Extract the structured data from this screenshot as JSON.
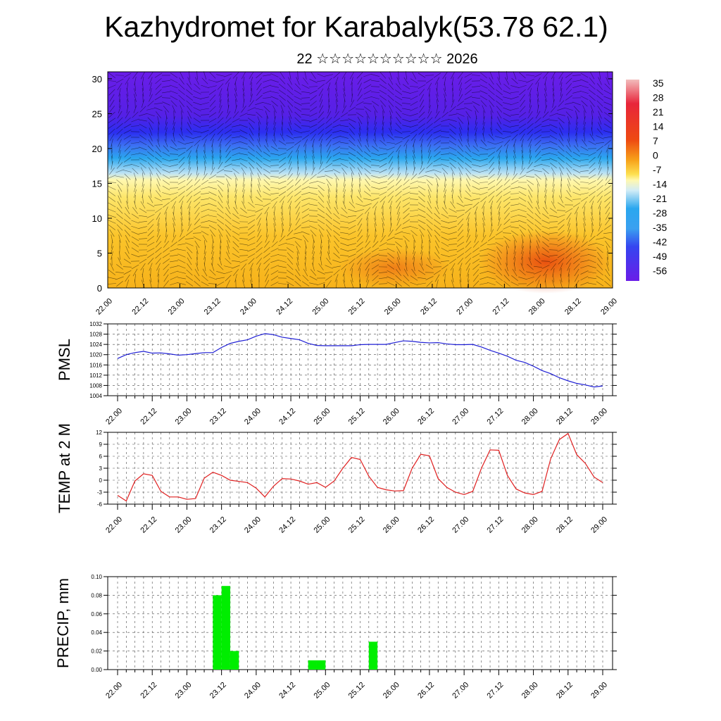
{
  "header": {
    "title": "Kazhydromet for Karabalyk(53.78 62.1)",
    "subtitle": "22 ☆☆☆☆☆☆☆☆☆☆ 2026"
  },
  "chart_data": [
    {
      "type": "heatmap",
      "name": "vertical cross-section",
      "x_tick_labels": [
        "22.00",
        "22.12",
        "23.00",
        "23.12",
        "24.00",
        "24.12",
        "25.00",
        "25.12",
        "26.00",
        "26.12",
        "27.00",
        "27.12",
        "28.00",
        "28.12",
        "29.00"
      ],
      "y_tick_labels": [
        "0",
        "5",
        "10",
        "15",
        "20",
        "25",
        "30"
      ],
      "ylim": [
        0,
        31
      ],
      "colorbar_labels": [
        "35",
        "28",
        "21",
        "14",
        "7",
        "0",
        "-7",
        "-14",
        "-21",
        "-28",
        "-35",
        "-42",
        "-49",
        "-56"
      ],
      "colorbar_range": [
        -63,
        42
      ],
      "overlay": "wind barbs",
      "colors": {
        "cold": "#6a1de8",
        "cool": "#2aa7ef",
        "neutral": "#fff8b0",
        "warm": "#f7b21a",
        "hot": "#e8460e"
      }
    },
    {
      "type": "line",
      "ylabel": "PMSL",
      "x_tick_labels": [
        "22.00",
        "22.12",
        "23.00",
        "23.12",
        "24.00",
        "24.12",
        "25.00",
        "25.12",
        "26.00",
        "26.12",
        "27.00",
        "27.12",
        "28.00",
        "28.12",
        "29.00"
      ],
      "y_tick_labels": [
        "1004",
        "1008",
        "1012",
        "1016",
        "1020",
        "1024",
        "1028",
        "1032"
      ],
      "ylim": [
        1004,
        1032
      ],
      "xlim": [
        0,
        56
      ],
      "color": "#1f1fd6",
      "series": [
        {
          "x": [
            0,
            1,
            2,
            3,
            4,
            5,
            6,
            7,
            8,
            9,
            10,
            11,
            12,
            13,
            14,
            15,
            16,
            17,
            18,
            19,
            20,
            21,
            22,
            23,
            24,
            25,
            26,
            27,
            28,
            29,
            30,
            31,
            32,
            33,
            34,
            35,
            36,
            37,
            38,
            39,
            40,
            41,
            42,
            43,
            44,
            45,
            46,
            47,
            48,
            49,
            50,
            51,
            52,
            53,
            54,
            55,
            56
          ],
          "values": [
            1018.5,
            1020,
            1020.8,
            1021.3,
            1020.6,
            1020.7,
            1020.3,
            1019.8,
            1020,
            1020.4,
            1020.8,
            1020.8,
            1022.8,
            1024.4,
            1025.2,
            1025.8,
            1027.2,
            1028.2,
            1027.8,
            1026.8,
            1026.3,
            1025.8,
            1024.4,
            1023.6,
            1023.5,
            1023.5,
            1023.5,
            1023.5,
            1023.9,
            1024,
            1024,
            1024,
            1024.7,
            1025.4,
            1025.2,
            1024.8,
            1024.6,
            1024.7,
            1024.2,
            1023.9,
            1023.9,
            1024,
            1023,
            1021.7,
            1020.6,
            1019.4,
            1017.8,
            1017,
            1015.5,
            1013.8,
            1012.6,
            1011,
            1009.8,
            1008.8,
            1008.2,
            1007.4,
            1007.8
          ]
        }
      ]
    },
    {
      "type": "line",
      "ylabel": "TEMP at 2 M",
      "x_tick_labels": [
        "22.00",
        "22.12",
        "23.00",
        "23.12",
        "24.00",
        "24.12",
        "25.00",
        "25.12",
        "26.00",
        "26.12",
        "27.00",
        "27.12",
        "28.00",
        "28.12",
        "29.00"
      ],
      "y_tick_labels": [
        "12",
        "9",
        "6",
        "3",
        "0",
        "-3",
        "-6"
      ],
      "ylim": [
        -6,
        12
      ],
      "xlim": [
        0,
        56
      ],
      "color": "#e02020",
      "series": [
        {
          "x": [
            0,
            1,
            2,
            3,
            4,
            5,
            6,
            7,
            8,
            9,
            10,
            11,
            12,
            13,
            14,
            15,
            16,
            17,
            18,
            19,
            20,
            21,
            22,
            23,
            24,
            25,
            26,
            27,
            28,
            29,
            30,
            31,
            32,
            33,
            34,
            35,
            36,
            37,
            38,
            39,
            40,
            41,
            42,
            43,
            44,
            45,
            46,
            47,
            48,
            49,
            50,
            51,
            52,
            53,
            54,
            55,
            56
          ],
          "values": [
            -3.8,
            -5.2,
            -0.2,
            1.6,
            1.2,
            -2.8,
            -4.2,
            -4.2,
            -4.8,
            -4.6,
            0.5,
            2,
            1.2,
            0,
            -0.3,
            -0.6,
            -2,
            -4.2,
            -1.5,
            0.4,
            0.3,
            -0.2,
            -1,
            -0.6,
            -1.8,
            -0.2,
            3,
            5.7,
            5.2,
            1,
            -1.8,
            -2.4,
            -2.7,
            -2.6,
            3,
            6.5,
            6.1,
            0.4,
            -1.8,
            -3,
            -3.6,
            -2.8,
            3,
            7.6,
            7.5,
            1.2,
            -2.2,
            -3.2,
            -3.6,
            -2.8,
            5.4,
            10.2,
            11.7,
            6.4,
            4.2,
            0.8,
            -0.6
          ]
        }
      ]
    },
    {
      "type": "bar",
      "ylabel": "PRECIP, mm",
      "x_tick_labels": [
        "22.00",
        "22.12",
        "23.00",
        "23.12",
        "24.00",
        "24.12",
        "25.00",
        "25.12",
        "26.00",
        "26.12",
        "27.00",
        "27.12",
        "28.00",
        "28.12",
        "29.00"
      ],
      "y_tick_labels": [
        "0.00",
        "0.02",
        "0.04",
        "0.06",
        "0.08",
        "0.10"
      ],
      "ylim": [
        0,
        0.1
      ],
      "xlim": [
        0,
        56
      ],
      "color": "#00ee00",
      "series": [
        {
          "x": [
            11,
            12,
            13,
            22,
            23,
            29
          ],
          "values": [
            0.08,
            0.09,
            0.02,
            0.01,
            0.01,
            0.03
          ]
        }
      ]
    }
  ]
}
